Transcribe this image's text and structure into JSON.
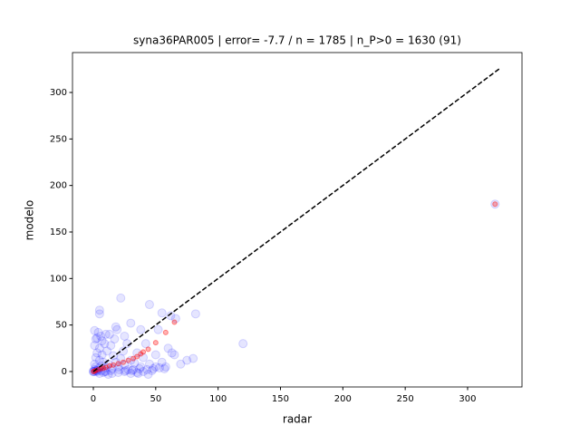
{
  "chart_data": {
    "type": "scatter",
    "title": "syna36PAR005 | error= -7.7 / n = 1785 | n_P>0 = 1630 (91)",
    "xlabel": "radar",
    "ylabel": "modelo",
    "xlim": [
      -16.7,
      343.6
    ],
    "ylim": [
      -16.6,
      342.9
    ],
    "xticks": [
      0,
      50,
      100,
      150,
      200,
      250,
      300
    ],
    "yticks": [
      0,
      50,
      100,
      150,
      200,
      250,
      300
    ],
    "series": [
      {
        "color": "#0000ff",
        "alpha": 0.1,
        "x": [
          0,
          1,
          2,
          3,
          1,
          4,
          5,
          6,
          2,
          8,
          10,
          12,
          3,
          5,
          7,
          15,
          18,
          20,
          22,
          25,
          9,
          11,
          14,
          17,
          28,
          30,
          33,
          35,
          38,
          40,
          42,
          45,
          48,
          50,
          52,
          55,
          58,
          60,
          6,
          4,
          2,
          1,
          13,
          16,
          19,
          24,
          27,
          31,
          36,
          44,
          3,
          5,
          8,
          10,
          12,
          15,
          20,
          25,
          30,
          35,
          40,
          0,
          1,
          2,
          6,
          9,
          14,
          21,
          26,
          32,
          37,
          43,
          47,
          53,
          57,
          62,
          66,
          70,
          75,
          80,
          63,
          65,
          55,
          45,
          22,
          5,
          5,
          120,
          322,
          82,
          50,
          38,
          30,
          25,
          18,
          10,
          7,
          3,
          1
        ],
        "y": [
          0,
          2,
          5,
          1,
          8,
          3,
          12,
          6,
          15,
          10,
          4,
          8,
          20,
          25,
          18,
          3,
          10,
          5,
          14,
          7,
          30,
          22,
          28,
          35,
          2,
          12,
          9,
          20,
          5,
          15,
          30,
          8,
          3,
          18,
          45,
          10,
          5,
          25,
          38,
          42,
          35,
          28,
          40,
          17,
          45,
          22,
          30,
          1,
          -2,
          -3,
          0,
          -2,
          -1,
          0,
          -3,
          -2,
          -1,
          0,
          -2,
          -1,
          0,
          0,
          0,
          1,
          1,
          0,
          1,
          2,
          1,
          2,
          3,
          2,
          1,
          4,
          3,
          60,
          57,
          8,
          12,
          14,
          20,
          18,
          63,
          72,
          79,
          66,
          62,
          30,
          180,
          62,
          5,
          45,
          52,
          38,
          48,
          40,
          33,
          36,
          44
        ]
      },
      {
        "color": "#ff0000",
        "alpha": 0.3,
        "x": [
          0,
          1,
          2,
          4,
          6,
          8,
          10,
          13,
          16,
          20,
          24,
          28,
          32,
          35,
          38,
          40,
          44,
          50,
          58,
          65,
          322
        ],
        "y": [
          0,
          0.5,
          1,
          2,
          3,
          3.5,
          4.5,
          6,
          7,
          8.5,
          10,
          12,
          14,
          16,
          19,
          21,
          24,
          31,
          42,
          53,
          180
        ]
      }
    ],
    "line": {
      "x": [
        0,
        326
      ],
      "y": [
        0,
        326
      ],
      "color": "#000000",
      "style": "dashed"
    }
  }
}
